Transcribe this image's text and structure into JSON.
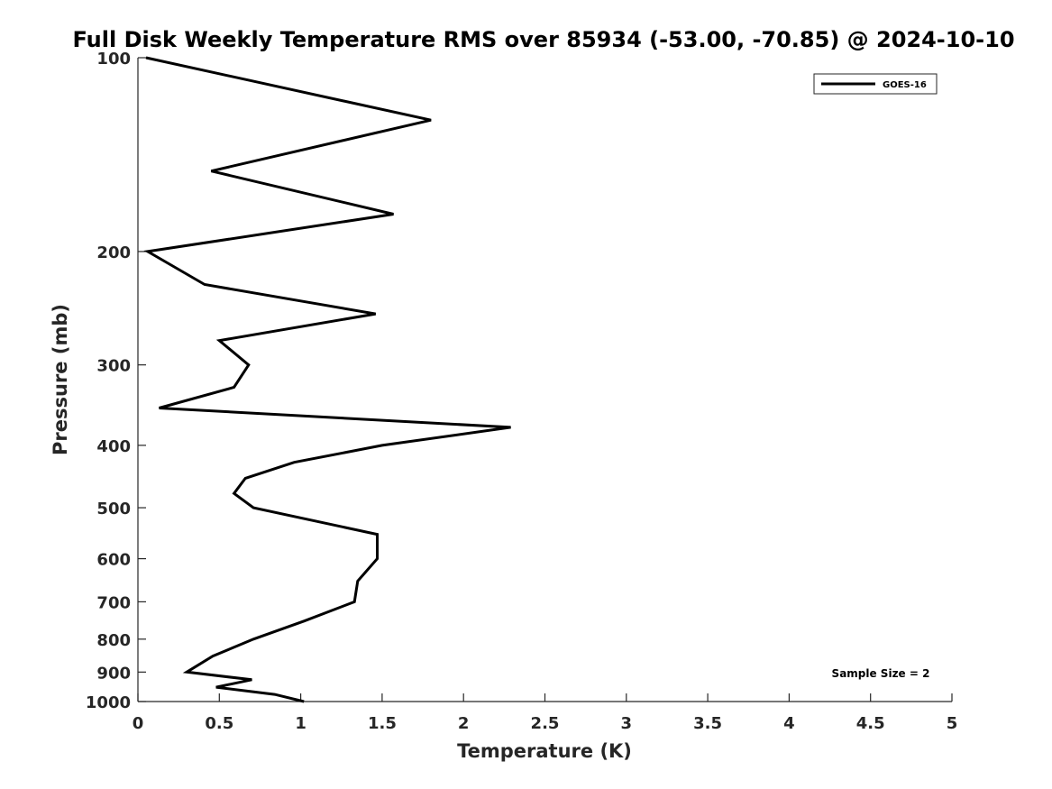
{
  "chart_data": {
    "type": "line",
    "title": "Full Disk Weekly Temperature RMS over 85934 (-53.00, -70.85) @ 2024-10-10",
    "xlabel": "Temperature (K)",
    "ylabel": "Pressure (mb)",
    "xlim": [
      0,
      5
    ],
    "ylim": [
      100,
      1000
    ],
    "y_scale": "log",
    "y_reversed": true,
    "grid": false,
    "legend_position": "top-right",
    "x_ticks": [
      "0",
      "0.5",
      "1",
      "1.5",
      "2",
      "2.5",
      "3",
      "3.5",
      "4",
      "4.5",
      "5"
    ],
    "x_tick_values": [
      0,
      0.5,
      1,
      1.5,
      2,
      2.5,
      3,
      3.5,
      4,
      4.5,
      5
    ],
    "y_ticks": [
      "100",
      "200",
      "300",
      "400",
      "500",
      "600",
      "700",
      "800",
      "900",
      "1000"
    ],
    "y_tick_values": [
      100,
      200,
      300,
      400,
      500,
      600,
      700,
      800,
      900,
      1000
    ],
    "annotation": "Sample Size = 2",
    "series": [
      {
        "name": "GOES-16",
        "color": "#000000",
        "points": [
          {
            "x": 0.05,
            "y": 100
          },
          {
            "x": 1.8,
            "y": 125
          },
          {
            "x": 0.45,
            "y": 150
          },
          {
            "x": 1.57,
            "y": 175
          },
          {
            "x": 0.06,
            "y": 200
          },
          {
            "x": 0.41,
            "y": 225
          },
          {
            "x": 1.46,
            "y": 250
          },
          {
            "x": 0.5,
            "y": 275
          },
          {
            "x": 0.68,
            "y": 300
          },
          {
            "x": 0.59,
            "y": 325
          },
          {
            "x": 0.13,
            "y": 350
          },
          {
            "x": 2.29,
            "y": 375
          },
          {
            "x": 1.5,
            "y": 400
          },
          {
            "x": 0.96,
            "y": 425
          },
          {
            "x": 0.66,
            "y": 450
          },
          {
            "x": 0.59,
            "y": 475
          },
          {
            "x": 0.71,
            "y": 500
          },
          {
            "x": 1.47,
            "y": 550
          },
          {
            "x": 1.47,
            "y": 600
          },
          {
            "x": 1.35,
            "y": 650
          },
          {
            "x": 1.33,
            "y": 700
          },
          {
            "x": 1.02,
            "y": 750
          },
          {
            "x": 0.71,
            "y": 800
          },
          {
            "x": 0.46,
            "y": 850
          },
          {
            "x": 0.3,
            "y": 900
          },
          {
            "x": 0.7,
            "y": 925
          },
          {
            "x": 0.48,
            "y": 950
          },
          {
            "x": 0.84,
            "y": 975
          },
          {
            "x": 1.02,
            "y": 1000
          }
        ]
      }
    ]
  }
}
